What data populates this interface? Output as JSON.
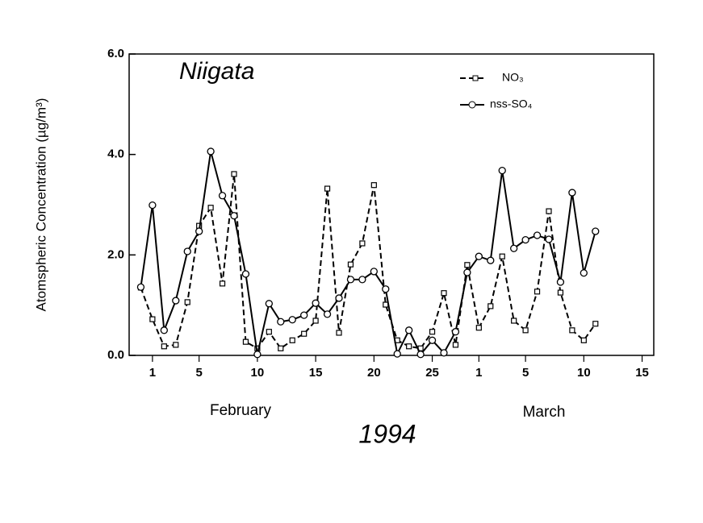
{
  "chart_data": {
    "type": "line",
    "title": "Niigata",
    "subtitle": "1994",
    "ylabel": "Atomspheric Concentration (µg/m³)",
    "annotations": [
      "February",
      "March"
    ],
    "legend": "top-right",
    "x": [
      0,
      1,
      2,
      3,
      4,
      5,
      6,
      7,
      8,
      9,
      10,
      11,
      12,
      13,
      14,
      15,
      16,
      17,
      18,
      19,
      20,
      21,
      22,
      23,
      24,
      25,
      26,
      27,
      28,
      29,
      30,
      31,
      32,
      33,
      34,
      35,
      36,
      37,
      38,
      39
    ],
    "xlim": [
      -1,
      44
    ],
    "xticks": [
      1,
      5,
      10,
      15,
      20,
      25,
      {
        "value": 29,
        "label": "1"
      },
      {
        "value": 33,
        "label": "5"
      },
      {
        "value": 38,
        "label": "10"
      },
      {
        "value": 43,
        "label": "15"
      }
    ],
    "ylim": [
      0,
      6
    ],
    "yticks": [
      {
        "value": 0,
        "label": "0.0"
      },
      {
        "value": 2,
        "label": "2.0"
      },
      {
        "value": 4,
        "label": "4.0"
      },
      {
        "value": 6,
        "label": "6.0"
      }
    ],
    "series": [
      {
        "name": "NO₃",
        "color": "#000000",
        "dash": true,
        "marker": "square",
        "values": [
          1.35,
          0.72,
          0.18,
          0.21,
          1.06,
          2.58,
          2.94,
          1.43,
          3.61,
          0.27,
          0.14,
          0.47,
          0.14,
          0.3,
          0.43,
          0.69,
          3.32,
          0.45,
          1.81,
          2.23,
          3.39,
          1.01,
          0.3,
          0.18,
          0.14,
          0.47,
          1.24,
          0.21,
          1.8,
          0.55,
          0.98,
          1.97,
          0.69,
          0.5,
          1.27,
          2.87,
          1.25,
          0.5,
          0.3,
          0.63
        ]
      },
      {
        "name": "nss-SO₄",
        "color": "#000000",
        "dash": false,
        "marker": "circle",
        "values": [
          1.36,
          2.99,
          0.5,
          1.09,
          2.07,
          2.47,
          4.06,
          3.18,
          2.78,
          1.62,
          0.02,
          1.03,
          0.67,
          0.71,
          0.8,
          1.04,
          0.82,
          1.14,
          1.51,
          1.51,
          1.67,
          1.32,
          0.03,
          0.5,
          0.02,
          0.3,
          0.05,
          0.47,
          1.65,
          1.97,
          1.89,
          3.68,
          2.13,
          2.3,
          2.39,
          2.31,
          1.46,
          3.24,
          1.64,
          2.47
        ]
      }
    ]
  }
}
